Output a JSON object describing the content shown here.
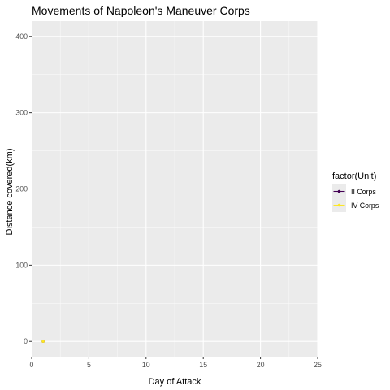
{
  "chart_data": {
    "type": "line",
    "title": "Movements of Napoleon's Maneuver Corps",
    "xlabel": "Day of Attack",
    "ylabel": "Distance covered(km)",
    "xlim": [
      0,
      25
    ],
    "ylim": [
      -20,
      420
    ],
    "xticks": [
      0,
      5,
      10,
      15,
      20,
      25
    ],
    "yticks": [
      0,
      100,
      200,
      300,
      400
    ],
    "grid": true,
    "legend": {
      "title": "factor(Unit)",
      "placement": "right"
    },
    "series": [
      {
        "name": "II Corps",
        "color": "#440154",
        "points": [
          [
            1,
            0
          ]
        ]
      },
      {
        "name": "IV Corps",
        "color": "#fde725",
        "points": [
          [
            1,
            0
          ]
        ]
      }
    ]
  },
  "colors": {
    "panel_background": "#ebebeb",
    "grid_major": "#ffffff",
    "tick_text": "#4d4d4d",
    "tick_mark": "#333333"
  }
}
